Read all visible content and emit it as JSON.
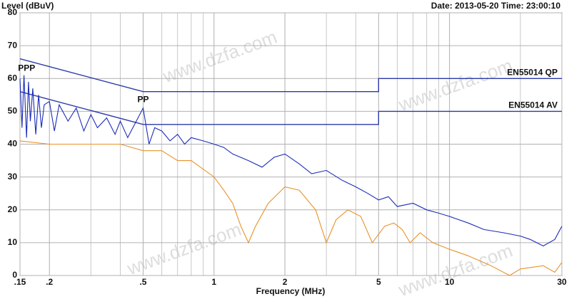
{
  "chart_data": {
    "type": "line",
    "y_label": "Level (dBuV)",
    "date_time": "Date: 2013-05-20  Time: 23:00:10",
    "x_label": "Frequency (MHz)",
    "watermark": "www.dzfa.com",
    "peak_labels": [
      "PPP",
      "PP"
    ],
    "log_x": true,
    "grid": true,
    "xlim": [
      0.15,
      30
    ],
    "ylim": [
      0,
      80
    ],
    "xticks": [
      {
        "value": 0.15,
        "label": ".15"
      },
      {
        "value": 0.2,
        "label": ".2"
      },
      {
        "value": 0.5,
        "label": ".5"
      },
      1,
      2,
      5,
      10,
      30
    ],
    "xminor": [
      0.3,
      0.4,
      0.6,
      0.7,
      0.8,
      0.9,
      3,
      4,
      6,
      7,
      8,
      9,
      20
    ],
    "yticks": [
      0,
      10,
      20,
      30,
      40,
      50,
      60,
      70,
      80
    ],
    "series": [
      {
        "name": "EN55014 QP",
        "color": "#2a3aa8",
        "x": [
          0.15,
          0.5,
          0.5,
          5,
          5,
          30
        ],
        "values": [
          66,
          56,
          56,
          56,
          60,
          60
        ]
      },
      {
        "name": "EN55014  AV",
        "color": "#2a3aa8",
        "x": [
          0.15,
          0.5,
          0.5,
          5,
          5,
          30
        ],
        "values": [
          56,
          46,
          46,
          46,
          50,
          50
        ]
      },
      {
        "color": "#1c2db8",
        "x": [
          0.15,
          0.153,
          0.156,
          0.16,
          0.163,
          0.166,
          0.17,
          0.175,
          0.18,
          0.185,
          0.19,
          0.2,
          0.21,
          0.22,
          0.24,
          0.26,
          0.28,
          0.3,
          0.32,
          0.35,
          0.38,
          0.4,
          0.43,
          0.46,
          0.5,
          0.53,
          0.56,
          0.6,
          0.65,
          0.7,
          0.75,
          0.8,
          0.9,
          1,
          1.1,
          1.2,
          1.4,
          1.6,
          1.8,
          2,
          2.3,
          2.6,
          3,
          3.5,
          4,
          4.5,
          5,
          5.5,
          6,
          7,
          8,
          9,
          10,
          12,
          14,
          17,
          20,
          22,
          25,
          28,
          30
        ],
        "values": [
          60,
          45,
          61,
          42,
          59,
          47,
          57,
          43,
          55,
          45,
          52,
          53,
          44,
          52,
          47,
          51,
          44,
          49,
          45,
          48,
          43,
          47,
          42,
          46,
          51,
          40,
          45,
          44,
          41,
          43,
          40,
          42,
          41,
          40,
          39,
          37,
          35,
          33,
          36,
          37,
          34,
          31,
          32,
          29,
          27,
          25,
          23,
          24,
          21,
          22,
          20,
          19,
          18,
          16,
          14,
          13,
          12,
          11,
          9,
          11,
          15
        ]
      },
      {
        "color": "#e8922a",
        "x": [
          0.15,
          0.2,
          0.3,
          0.4,
          0.5,
          0.6,
          0.7,
          0.8,
          1,
          1.1,
          1.2,
          1.3,
          1.4,
          1.5,
          1.7,
          2,
          2.3,
          2.7,
          3,
          3.3,
          3.7,
          4.2,
          4.7,
          5.3,
          5.8,
          6.3,
          6.8,
          7.5,
          8.5,
          10,
          12,
          15,
          18,
          20,
          25,
          28,
          30
        ],
        "values": [
          41,
          40,
          40,
          40,
          38,
          38,
          35,
          35,
          30,
          26,
          22,
          15,
          10,
          15,
          22,
          27,
          26,
          20,
          10,
          17,
          20,
          18,
          10,
          15,
          16,
          14,
          10,
          13,
          10,
          8,
          6,
          3,
          0,
          2,
          3,
          1,
          4
        ]
      }
    ]
  }
}
